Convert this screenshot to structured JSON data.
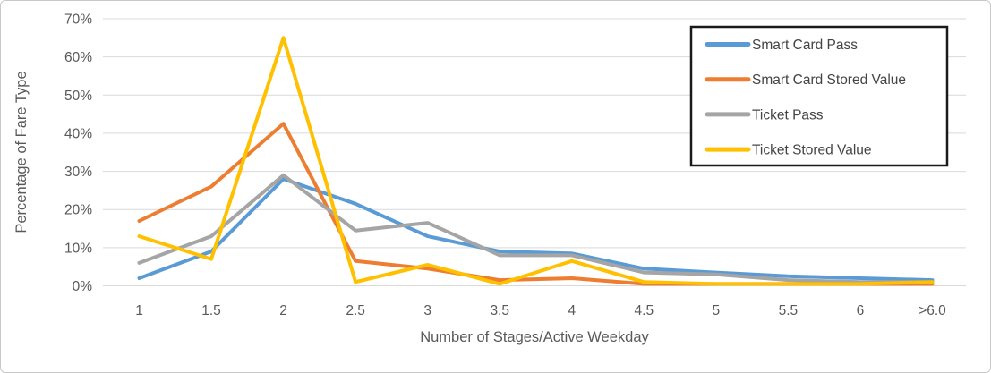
{
  "chart_data": {
    "type": "line",
    "title": "",
    "xlabel": "Number of Stages/Active Weekday",
    "ylabel": "Percentage of Fare Type",
    "categories": [
      "1",
      "1.5",
      "2",
      "2.5",
      "3",
      "3.5",
      "4",
      "4.5",
      "5",
      "5.5",
      "6",
      ">6.0"
    ],
    "ylim": [
      0,
      70
    ],
    "ytick_step": 10,
    "ytick_labels": [
      "0%",
      "10%",
      "20%",
      "30%",
      "40%",
      "50%",
      "60%",
      "70%"
    ],
    "grid": true,
    "legend_position": "top-right",
    "series": [
      {
        "name": "Smart Card Pass",
        "color": "#5B9BD5",
        "values": [
          2,
          9,
          28,
          21.5,
          13,
          9,
          8.5,
          4.5,
          3.5,
          2.5,
          2,
          1.5
        ]
      },
      {
        "name": "Smart Card Stored Value",
        "color": "#ED7D31",
        "values": [
          17,
          26,
          42.5,
          6.5,
          4.5,
          1.5,
          2,
          0.5,
          0.5,
          0.5,
          0.5,
          0.5
        ]
      },
      {
        "name": "Ticket Pass",
        "color": "#A5A5A5",
        "values": [
          6,
          13,
          29,
          14.5,
          16.5,
          8,
          8,
          3.5,
          3,
          1.5,
          1,
          1
        ]
      },
      {
        "name": "Ticket Stored Value",
        "color": "#FFC000",
        "values": [
          13,
          7,
          65,
          1,
          5.5,
          0.5,
          6.5,
          1,
          0.5,
          0.5,
          0.5,
          1
        ]
      }
    ],
    "colors": {
      "gridline": "#d9d9d9",
      "axis_text": "#595959",
      "legend_border": "#1a1a1a",
      "background": "#ffffff"
    }
  }
}
